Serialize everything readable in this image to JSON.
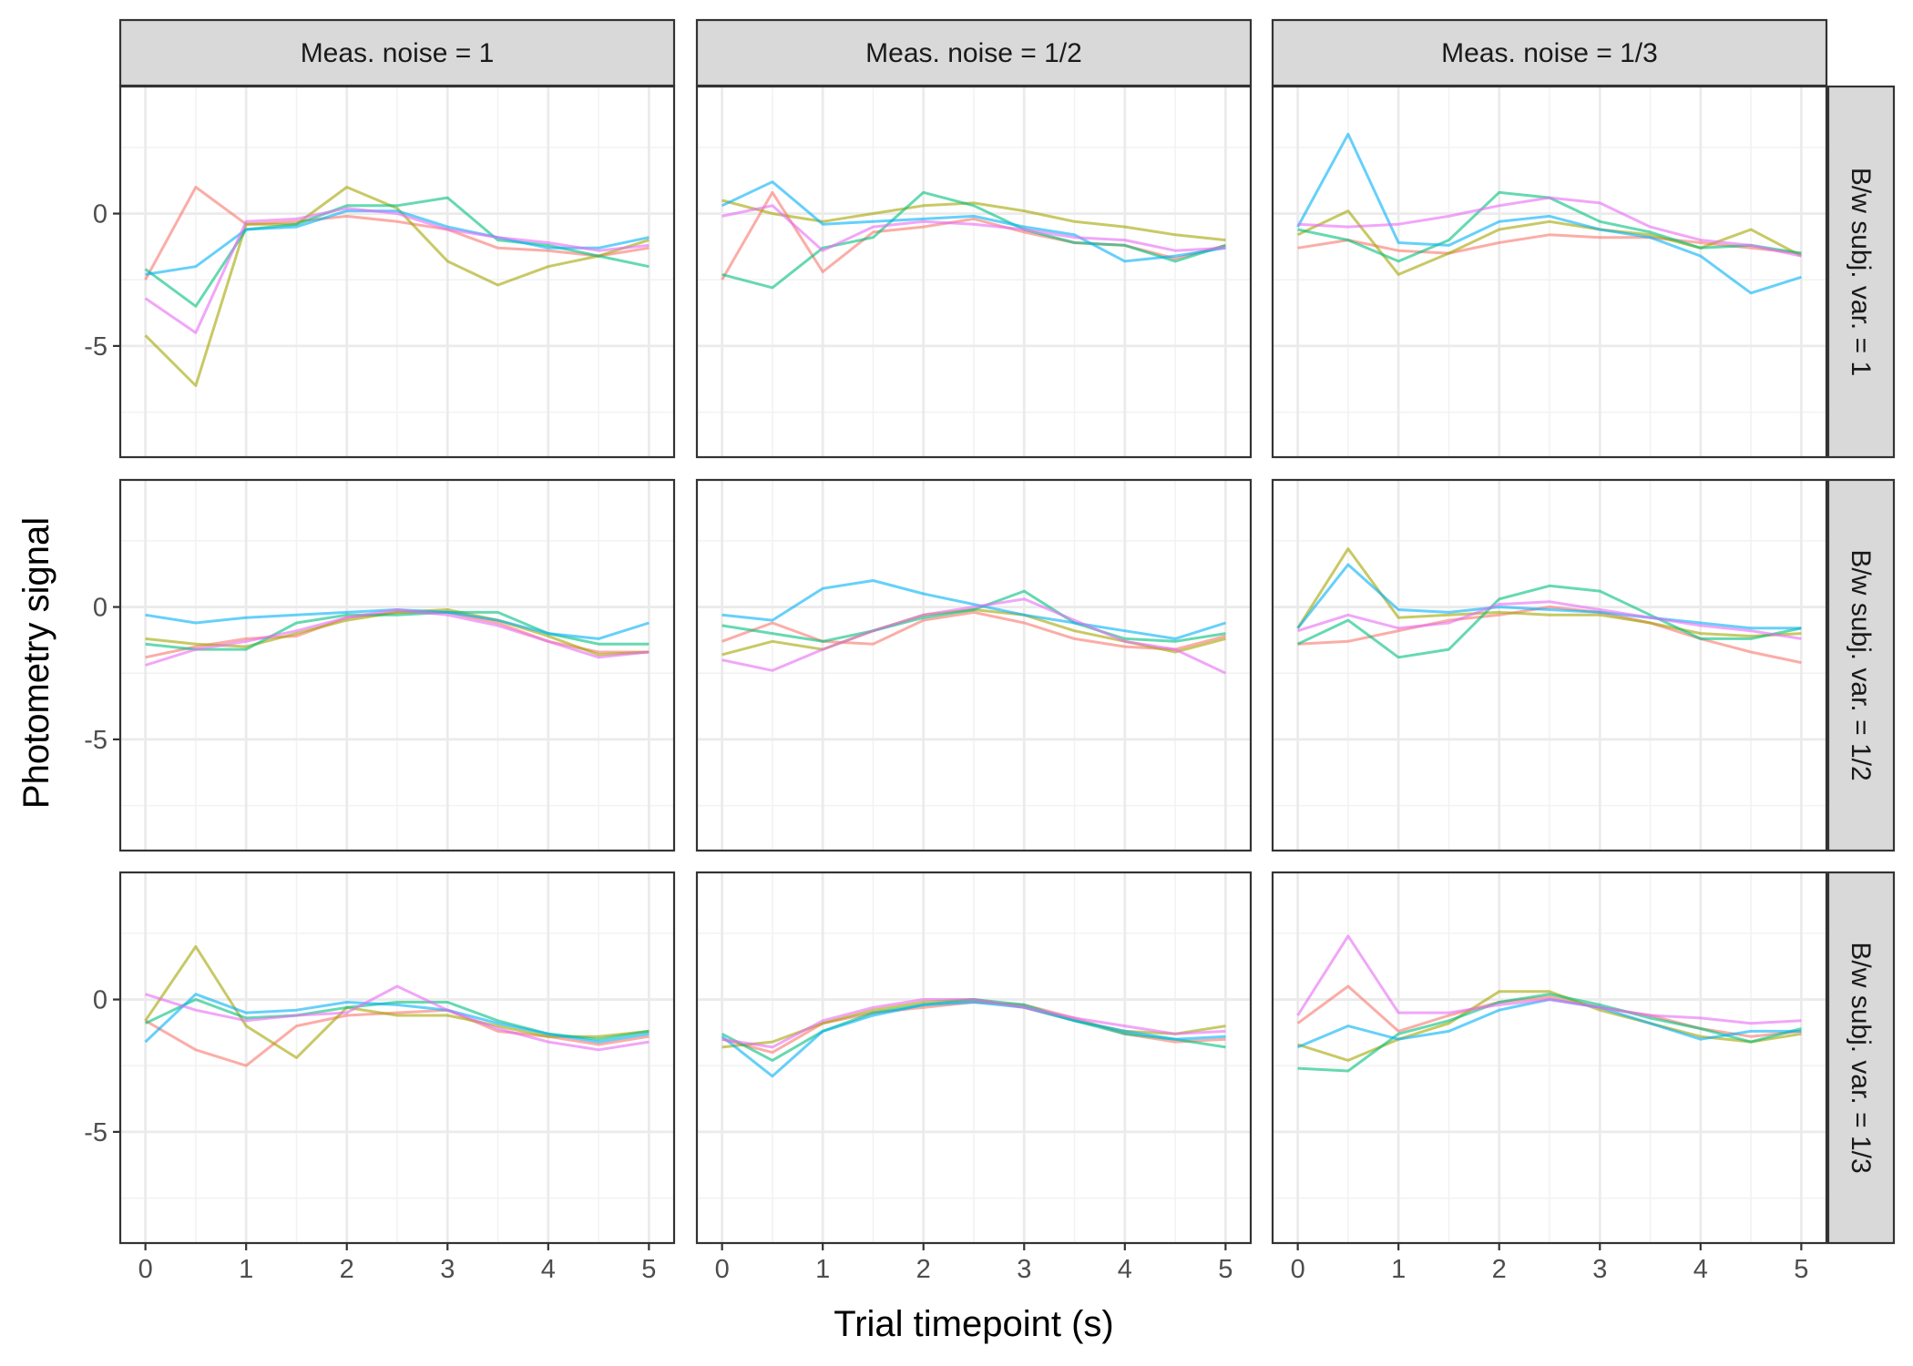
{
  "chart_data": {
    "type": "line",
    "title": "",
    "xlabel": "Trial timepoint (s)",
    "ylabel": "Photometry signal",
    "xlim": [
      -0.25,
      5.25
    ],
    "ylim": [
      -9.2,
      4.8
    ],
    "x_ticks": [
      0,
      1,
      2,
      3,
      4,
      5
    ],
    "y_ticks": [
      0,
      -5
    ],
    "y_tick_labels": [
      "0",
      "-5"
    ],
    "grid": true,
    "legend": "none",
    "series_colors": [
      "#F8766D",
      "#A3A500",
      "#00BF7D",
      "#00B0F6",
      "#E76BF3"
    ],
    "column_facets": [
      "Meas. noise = 1",
      "Meas. noise = 1/2",
      "Meas. noise = 1/3"
    ],
    "row_facets": [
      "B/w subj. var. = 1",
      "B/w subj. var. = 1/2",
      "B/w subj. var. = 1/3"
    ],
    "x": [
      0,
      0.5,
      1,
      1.5,
      2,
      2.5,
      3,
      3.5,
      4,
      4.5,
      5
    ],
    "panels": [
      {
        "column": 0,
        "row": 0,
        "series": [
          {
            "values": [
              -2.5,
              1.0,
              -0.4,
              -0.3,
              -0.1,
              -0.3,
              -0.6,
              -1.3,
              -1.4,
              -1.6,
              -1.3
            ]
          },
          {
            "values": [
              -4.6,
              -6.5,
              -0.4,
              -0.4,
              1.0,
              0.2,
              -1.8,
              -2.7,
              -2.0,
              -1.6,
              -1.0
            ]
          },
          {
            "values": [
              -2.1,
              -3.5,
              -0.6,
              -0.4,
              0.3,
              0.3,
              0.6,
              -1.0,
              -1.2,
              -1.6,
              -2.0
            ]
          },
          {
            "values": [
              -2.3,
              -2.0,
              -0.6,
              -0.5,
              0.1,
              0.1,
              -0.5,
              -0.9,
              -1.3,
              -1.3,
              -0.9
            ]
          },
          {
            "values": [
              -3.2,
              -4.5,
              -0.3,
              -0.2,
              0.2,
              0.0,
              -0.6,
              -0.9,
              -1.1,
              -1.4,
              -1.2
            ]
          }
        ]
      },
      {
        "column": 1,
        "row": 0,
        "series": [
          {
            "values": [
              -2.5,
              0.8,
              -2.2,
              -0.7,
              -0.5,
              -0.2,
              -0.7,
              -1.1,
              -1.2,
              -1.7,
              -1.2
            ]
          },
          {
            "values": [
              0.5,
              0.0,
              -0.3,
              0.0,
              0.3,
              0.4,
              0.1,
              -0.3,
              -0.5,
              -0.8,
              -1.0
            ]
          },
          {
            "values": [
              -2.3,
              -2.8,
              -1.3,
              -0.9,
              0.8,
              0.3,
              -0.6,
              -1.1,
              -1.2,
              -1.8,
              -1.2
            ]
          },
          {
            "values": [
              0.3,
              1.2,
              -0.4,
              -0.3,
              -0.2,
              -0.1,
              -0.5,
              -0.8,
              -1.8,
              -1.6,
              -1.3
            ]
          },
          {
            "values": [
              -0.1,
              0.3,
              -1.4,
              -0.5,
              -0.3,
              -0.4,
              -0.6,
              -0.9,
              -1.0,
              -1.4,
              -1.3
            ]
          }
        ]
      },
      {
        "column": 2,
        "row": 0,
        "series": [
          {
            "values": [
              -1.3,
              -1.0,
              -1.4,
              -1.5,
              -1.1,
              -0.8,
              -0.9,
              -0.9,
              -1.1,
              -1.3,
              -1.5
            ]
          },
          {
            "values": [
              -0.8,
              0.1,
              -2.3,
              -1.5,
              -0.6,
              -0.3,
              -0.6,
              -0.8,
              -1.3,
              -0.6,
              -1.6
            ]
          },
          {
            "values": [
              -0.6,
              -1.0,
              -1.8,
              -1.0,
              0.8,
              0.6,
              -0.3,
              -0.7,
              -1.3,
              -1.2,
              -1.5
            ]
          },
          {
            "values": [
              -0.5,
              3.0,
              -1.1,
              -1.2,
              -0.3,
              -0.1,
              -0.6,
              -0.9,
              -1.6,
              -3.0,
              -2.4
            ]
          },
          {
            "values": [
              -0.4,
              -0.5,
              -0.4,
              -0.1,
              0.3,
              0.6,
              0.4,
              -0.5,
              -1.0,
              -1.2,
              -1.6
            ]
          }
        ]
      },
      {
        "column": 0,
        "row": 1,
        "series": [
          {
            "values": [
              -1.9,
              -1.5,
              -1.2,
              -1.1,
              -0.4,
              -0.2,
              -0.2,
              -0.6,
              -1.3,
              -1.7,
              -1.7
            ]
          },
          {
            "values": [
              -1.2,
              -1.4,
              -1.5,
              -1.0,
              -0.5,
              -0.2,
              -0.1,
              -0.5,
              -1.1,
              -1.8,
              -1.7
            ]
          },
          {
            "values": [
              -1.4,
              -1.6,
              -1.6,
              -0.6,
              -0.3,
              -0.3,
              -0.2,
              -0.2,
              -1.0,
              -1.4,
              -1.4
            ]
          },
          {
            "values": [
              -0.3,
              -0.6,
              -0.4,
              -0.3,
              -0.2,
              -0.1,
              -0.2,
              -0.5,
              -1.0,
              -1.2,
              -0.6
            ]
          },
          {
            "values": [
              -2.2,
              -1.6,
              -1.3,
              -0.9,
              -0.4,
              -0.1,
              -0.3,
              -0.7,
              -1.3,
              -1.9,
              -1.7
            ]
          }
        ]
      },
      {
        "column": 1,
        "row": 1,
        "series": [
          {
            "values": [
              -1.3,
              -0.6,
              -1.3,
              -1.4,
              -0.5,
              -0.2,
              -0.6,
              -1.2,
              -1.5,
              -1.6,
              -1.1
            ]
          },
          {
            "values": [
              -1.8,
              -1.3,
              -1.6,
              -0.9,
              -0.3,
              -0.1,
              -0.3,
              -0.9,
              -1.3,
              -1.7,
              -1.2
            ]
          },
          {
            "values": [
              -0.7,
              -1.0,
              -1.3,
              -0.9,
              -0.4,
              -0.1,
              0.6,
              -0.6,
              -1.2,
              -1.3,
              -1.0
            ]
          },
          {
            "values": [
              -0.3,
              -0.5,
              0.7,
              1.0,
              0.5,
              0.1,
              -0.3,
              -0.6,
              -0.9,
              -1.2,
              -0.6
            ]
          },
          {
            "values": [
              -2.0,
              -2.4,
              -1.6,
              -0.9,
              -0.3,
              0.0,
              0.3,
              -0.5,
              -1.3,
              -1.6,
              -2.5
            ]
          }
        ]
      },
      {
        "column": 2,
        "row": 1,
        "series": [
          {
            "values": [
              -1.4,
              -1.3,
              -0.9,
              -0.5,
              -0.3,
              0.0,
              -0.2,
              -0.6,
              -1.2,
              -1.7,
              -2.1
            ]
          },
          {
            "values": [
              -0.8,
              2.2,
              -0.4,
              -0.3,
              -0.2,
              -0.3,
              -0.3,
              -0.6,
              -1.0,
              -1.1,
              -1.0
            ]
          },
          {
            "values": [
              -1.4,
              -0.5,
              -1.9,
              -1.6,
              0.3,
              0.8,
              0.6,
              -0.3,
              -1.2,
              -1.2,
              -0.8
            ]
          },
          {
            "values": [
              -0.8,
              1.6,
              -0.1,
              -0.2,
              0.0,
              -0.1,
              -0.2,
              -0.4,
              -0.6,
              -0.8,
              -0.8
            ]
          },
          {
            "values": [
              -0.9,
              -0.3,
              -0.8,
              -0.6,
              0.1,
              0.2,
              -0.1,
              -0.4,
              -0.7,
              -0.9,
              -1.2
            ]
          }
        ]
      },
      {
        "column": 0,
        "row": 2,
        "series": [
          {
            "values": [
              -0.8,
              -1.9,
              -2.5,
              -1.0,
              -0.6,
              -0.5,
              -0.4,
              -1.2,
              -1.4,
              -1.7,
              -1.4
            ]
          },
          {
            "values": [
              -0.8,
              2.0,
              -1.0,
              -2.2,
              -0.3,
              -0.6,
              -0.6,
              -1.0,
              -1.4,
              -1.4,
              -1.2
            ]
          },
          {
            "values": [
              -0.9,
              0.0,
              -0.7,
              -0.6,
              -0.3,
              -0.1,
              -0.1,
              -0.8,
              -1.3,
              -1.5,
              -1.2
            ]
          },
          {
            "values": [
              -1.6,
              0.2,
              -0.5,
              -0.4,
              -0.1,
              -0.2,
              -0.4,
              -0.9,
              -1.3,
              -1.6,
              -1.3
            ]
          },
          {
            "values": [
              0.2,
              -0.4,
              -0.8,
              -0.6,
              -0.5,
              0.5,
              -0.4,
              -1.1,
              -1.6,
              -1.9,
              -1.6
            ]
          }
        ]
      },
      {
        "column": 1,
        "row": 2,
        "series": [
          {
            "values": [
              -1.5,
              -2.0,
              -0.9,
              -0.5,
              -0.3,
              -0.1,
              -0.2,
              -0.7,
              -1.3,
              -1.6,
              -1.5
            ]
          },
          {
            "values": [
              -1.8,
              -1.6,
              -0.9,
              -0.4,
              -0.1,
              0.0,
              -0.3,
              -0.8,
              -1.2,
              -1.3,
              -1.0
            ]
          },
          {
            "values": [
              -1.3,
              -2.3,
              -1.2,
              -0.5,
              -0.2,
              0.0,
              -0.2,
              -0.8,
              -1.3,
              -1.5,
              -1.8
            ]
          },
          {
            "values": [
              -1.4,
              -2.9,
              -1.2,
              -0.6,
              -0.2,
              -0.1,
              -0.3,
              -0.8,
              -1.2,
              -1.5,
              -1.4
            ]
          },
          {
            "values": [
              -1.5,
              -1.8,
              -0.8,
              -0.3,
              0.0,
              0.0,
              -0.3,
              -0.7,
              -1.0,
              -1.3,
              -1.2
            ]
          }
        ]
      },
      {
        "column": 2,
        "row": 2,
        "series": [
          {
            "values": [
              -0.9,
              0.5,
              -1.2,
              -0.6,
              -0.1,
              0.1,
              -0.3,
              -0.6,
              -1.1,
              -1.4,
              -1.2
            ]
          },
          {
            "values": [
              -1.7,
              -2.3,
              -1.5,
              -0.9,
              0.3,
              0.3,
              -0.4,
              -0.9,
              -1.4,
              -1.6,
              -1.3
            ]
          },
          {
            "values": [
              -2.6,
              -2.7,
              -1.3,
              -0.8,
              -0.1,
              0.2,
              -0.2,
              -0.7,
              -1.1,
              -1.6,
              -1.1
            ]
          },
          {
            "values": [
              -1.8,
              -1.0,
              -1.5,
              -1.2,
              -0.4,
              0.0,
              -0.3,
              -0.9,
              -1.5,
              -1.2,
              -1.2
            ]
          },
          {
            "values": [
              -0.6,
              2.4,
              -0.5,
              -0.5,
              -0.2,
              0.0,
              -0.3,
              -0.6,
              -0.7,
              -0.9,
              -0.8
            ]
          }
        ]
      }
    ]
  }
}
